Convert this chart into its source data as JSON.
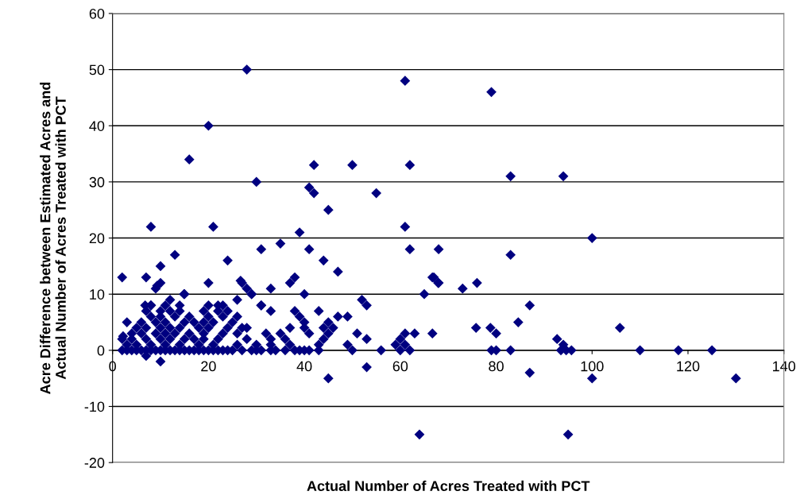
{
  "chart_data": {
    "type": "scatter",
    "xlabel": "Actual Number of Acres Treated with PCT",
    "ylabel": "Acre Difference between Estimated Acres and\nActual Number of Acres Treated with PCT",
    "xlim": [
      0,
      140
    ],
    "xticks": [
      0,
      20,
      40,
      60,
      80,
      100,
      120,
      140
    ],
    "ylim": [
      -20,
      60
    ],
    "yticks": [
      -20,
      -10,
      0,
      10,
      20,
      30,
      40,
      50,
      60
    ],
    "grid": "y",
    "marker": "diamond",
    "legend": false,
    "series": [
      {
        "color": "#000080",
        "x": [
          28,
          61,
          79,
          20,
          16,
          42,
          50,
          62,
          83,
          94,
          30,
          41,
          42,
          55,
          45,
          8,
          21,
          61,
          39,
          100,
          35,
          31,
          41,
          62,
          68,
          13,
          83,
          24,
          44,
          10,
          47,
          2,
          7,
          67,
          38,
          10,
          20,
          27,
          37,
          68,
          76,
          73,
          9,
          33,
          28,
          29,
          15,
          40,
          65,
          12,
          26,
          52,
          8,
          22,
          31,
          53,
          87,
          45,
          53,
          10,
          64,
          95,
          87,
          100,
          130,
          7,
          66.7,
          67.9,
          75.8,
          78.8,
          80,
          84.6,
          92.7,
          94,
          105.8,
          66.7,
          3,
          2.2,
          6.8,
          9.3,
          14.9,
          26.7,
          29,
          2,
          3,
          4,
          5,
          6,
          7,
          8,
          9,
          10,
          11,
          12,
          13,
          14,
          15,
          16,
          17,
          18,
          19,
          20,
          21,
          22,
          23,
          24,
          25,
          27,
          29,
          30,
          31,
          33,
          34,
          36,
          38,
          39,
          40,
          41,
          43,
          50,
          56,
          60,
          62,
          79,
          80,
          83,
          93.5,
          94.6,
          95.7,
          110,
          118,
          125,
          3,
          5,
          8,
          11,
          14,
          18,
          21,
          26,
          30,
          33,
          37,
          43,
          49,
          59,
          61,
          2,
          4,
          7,
          10,
          12,
          15,
          17,
          19,
          22,
          28,
          33,
          36,
          44,
          53,
          60,
          4,
          6,
          9,
          11,
          13,
          16,
          19,
          23,
          26,
          32,
          35,
          41,
          45,
          51,
          61,
          63,
          5,
          7,
          10,
          12,
          14,
          18,
          20,
          24,
          27,
          28,
          37,
          40,
          44,
          46,
          6,
          9,
          11,
          15,
          17,
          19,
          21,
          25,
          40,
          45,
          8,
          10,
          13,
          16,
          20,
          23,
          26,
          39,
          47,
          49,
          7,
          10,
          12,
          14,
          19,
          22,
          24,
          33,
          38,
          43,
          8,
          11,
          14,
          20,
          23,
          31
        ],
        "values": [
          50,
          48,
          46,
          40,
          34,
          33,
          33,
          33,
          31,
          31,
          30,
          29,
          28,
          28,
          25,
          22,
          22,
          22,
          21,
          20,
          19,
          18,
          18,
          18,
          18,
          17,
          17,
          16,
          16,
          15,
          14,
          13,
          13,
          13,
          13,
          12,
          12,
          12,
          12,
          12,
          12,
          11,
          11,
          11,
          11,
          10,
          10,
          10,
          10,
          9,
          9,
          9,
          8,
          8,
          8,
          8,
          8,
          -5,
          -3,
          -2,
          -15,
          -15,
          -4,
          -5,
          -5,
          -1,
          13,
          12,
          4,
          4,
          3,
          5,
          2,
          1,
          4,
          3,
          5,
          2.5,
          8,
          11.5,
          10,
          12.4,
          10,
          0,
          0,
          0,
          0,
          0,
          0,
          0,
          0,
          0,
          0,
          0,
          0,
          0,
          0,
          0,
          0,
          0,
          0,
          0,
          0,
          0,
          0,
          0,
          0,
          0,
          0,
          0,
          0,
          0,
          0,
          0,
          0,
          0,
          0,
          0,
          0,
          0,
          0,
          0,
          0,
          0,
          0,
          0,
          0,
          0,
          0,
          0,
          0,
          0,
          1,
          1,
          1,
          1,
          1,
          1,
          1,
          1,
          1,
          1,
          1,
          1,
          1,
          1,
          1,
          2,
          2,
          2,
          2,
          2,
          2,
          2,
          2,
          2,
          2,
          2,
          2,
          2,
          2,
          2,
          3,
          3,
          3,
          3,
          3,
          3,
          3,
          3,
          3,
          3,
          3,
          3,
          3,
          3,
          3,
          3,
          4,
          4,
          4,
          4,
          4,
          4,
          4,
          4,
          4,
          4,
          4,
          4,
          4,
          4,
          5,
          5,
          5,
          5,
          5,
          5,
          5,
          5,
          5,
          5,
          6,
          6,
          6,
          6,
          6,
          6,
          6,
          6,
          6,
          6,
          7,
          7,
          7,
          7,
          7,
          7,
          7,
          7,
          7,
          7,
          8,
          8,
          8,
          8,
          8,
          8
        ]
      }
    ]
  }
}
